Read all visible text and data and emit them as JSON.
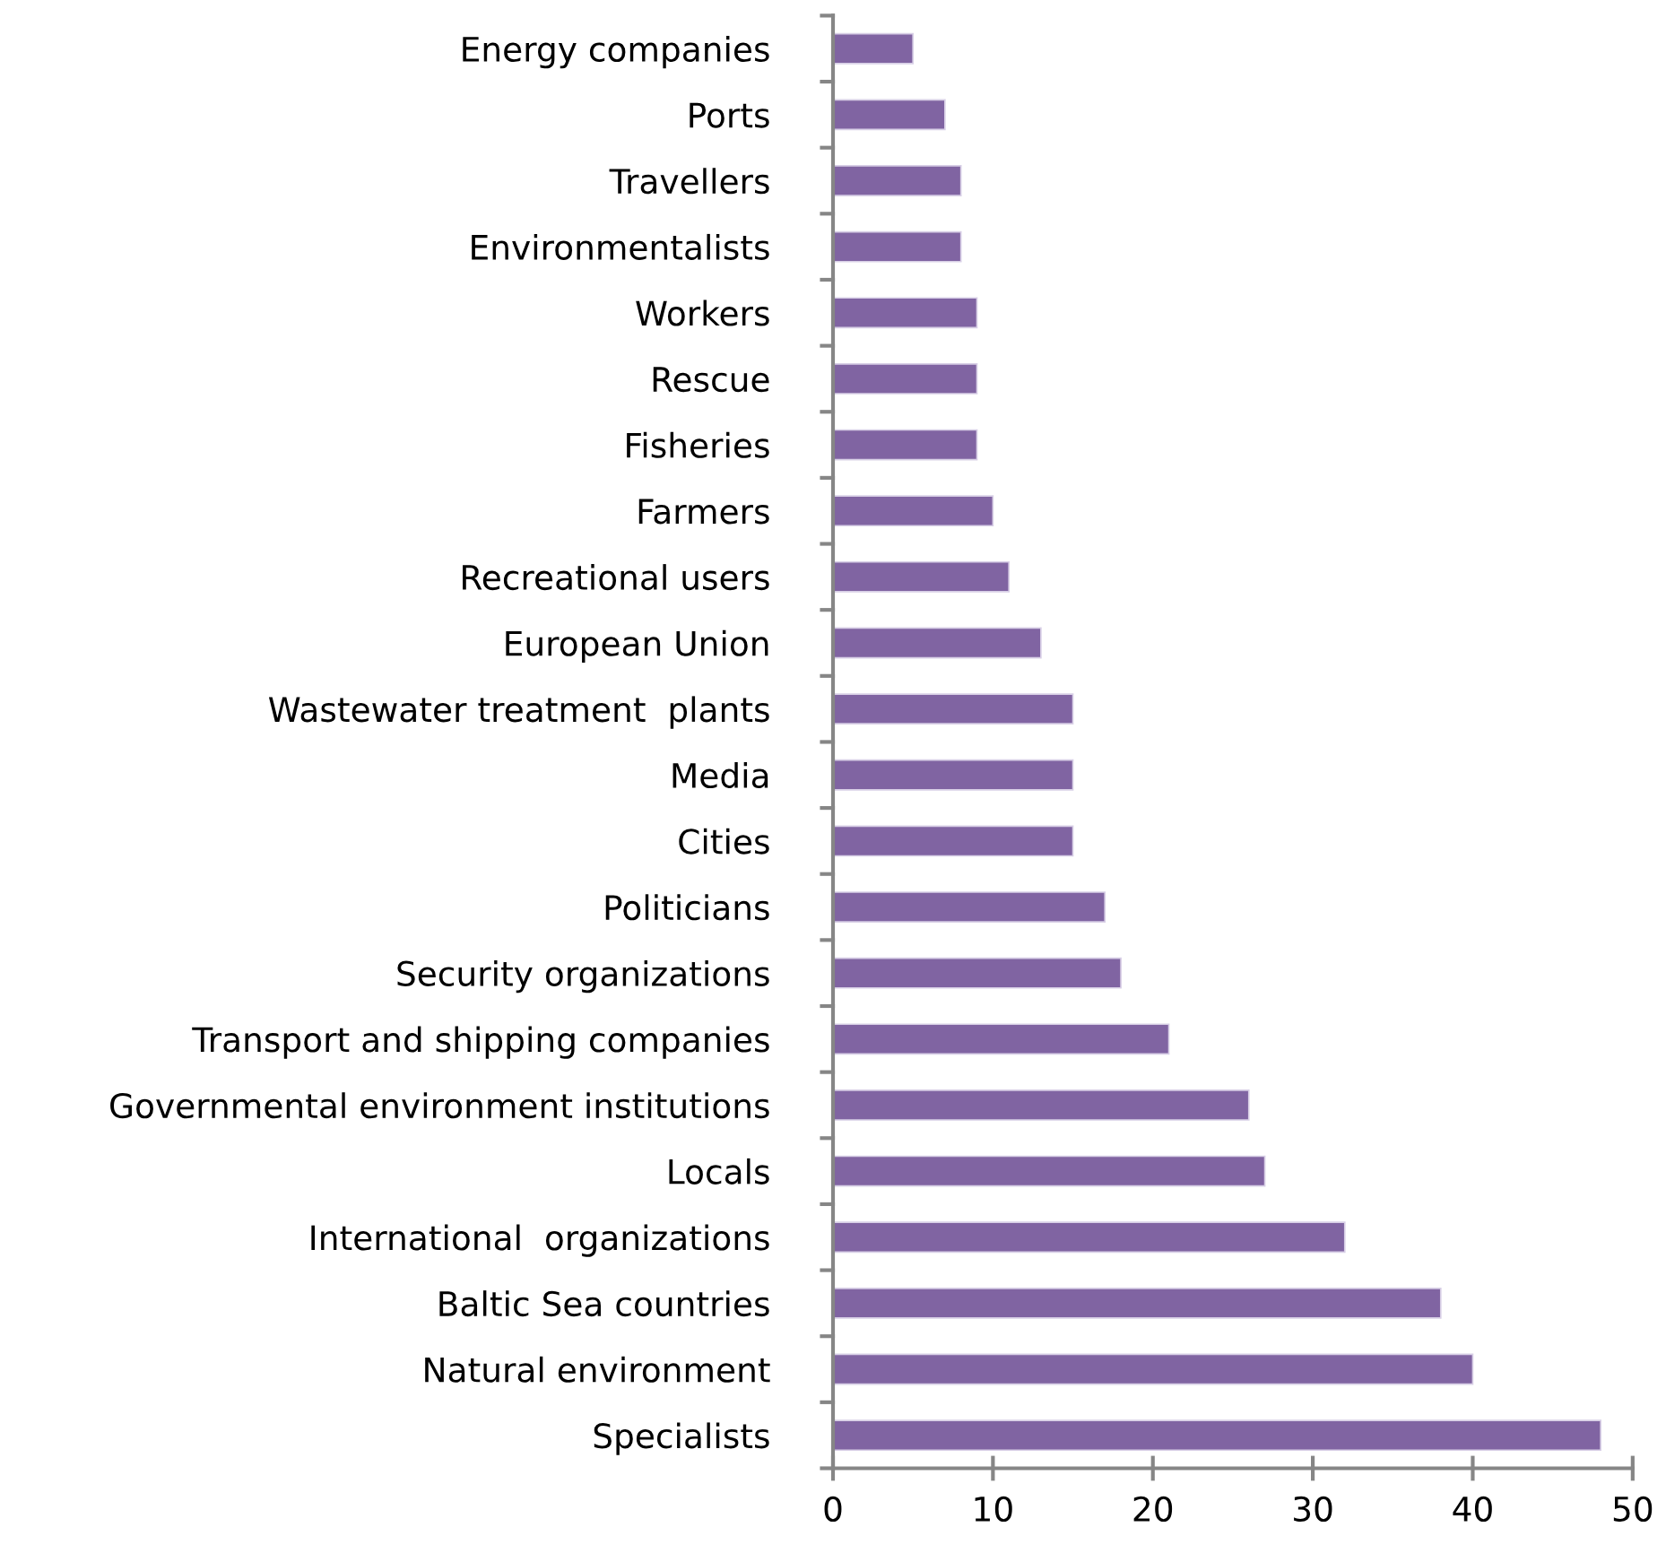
{
  "chart_data": {
    "type": "bar",
    "orientation": "horizontal",
    "categories": [
      "Energy companies",
      "Ports",
      "Travellers",
      "Environmentalists",
      "Workers",
      "Rescue",
      "Fisheries",
      "Farmers",
      "Recreational users",
      "European Union",
      "Wastewater treatment  plants",
      "Media",
      "Cities",
      "Politicians",
      "Security organizations",
      "Transport and shipping companies",
      "Governmental environment institutions",
      "Locals",
      "International  organizations",
      "Baltic Sea countries",
      "Natural environment",
      "Specialists"
    ],
    "values": [
      5,
      7,
      8,
      8,
      9,
      9,
      9,
      10,
      11,
      13,
      15,
      15,
      15,
      17,
      18,
      21,
      26,
      27,
      32,
      38,
      40,
      48
    ],
    "color": "#8064a2",
    "xlim": [
      0,
      50
    ],
    "xticks": [
      0,
      10,
      20,
      30,
      40,
      50
    ],
    "grid": false
  }
}
